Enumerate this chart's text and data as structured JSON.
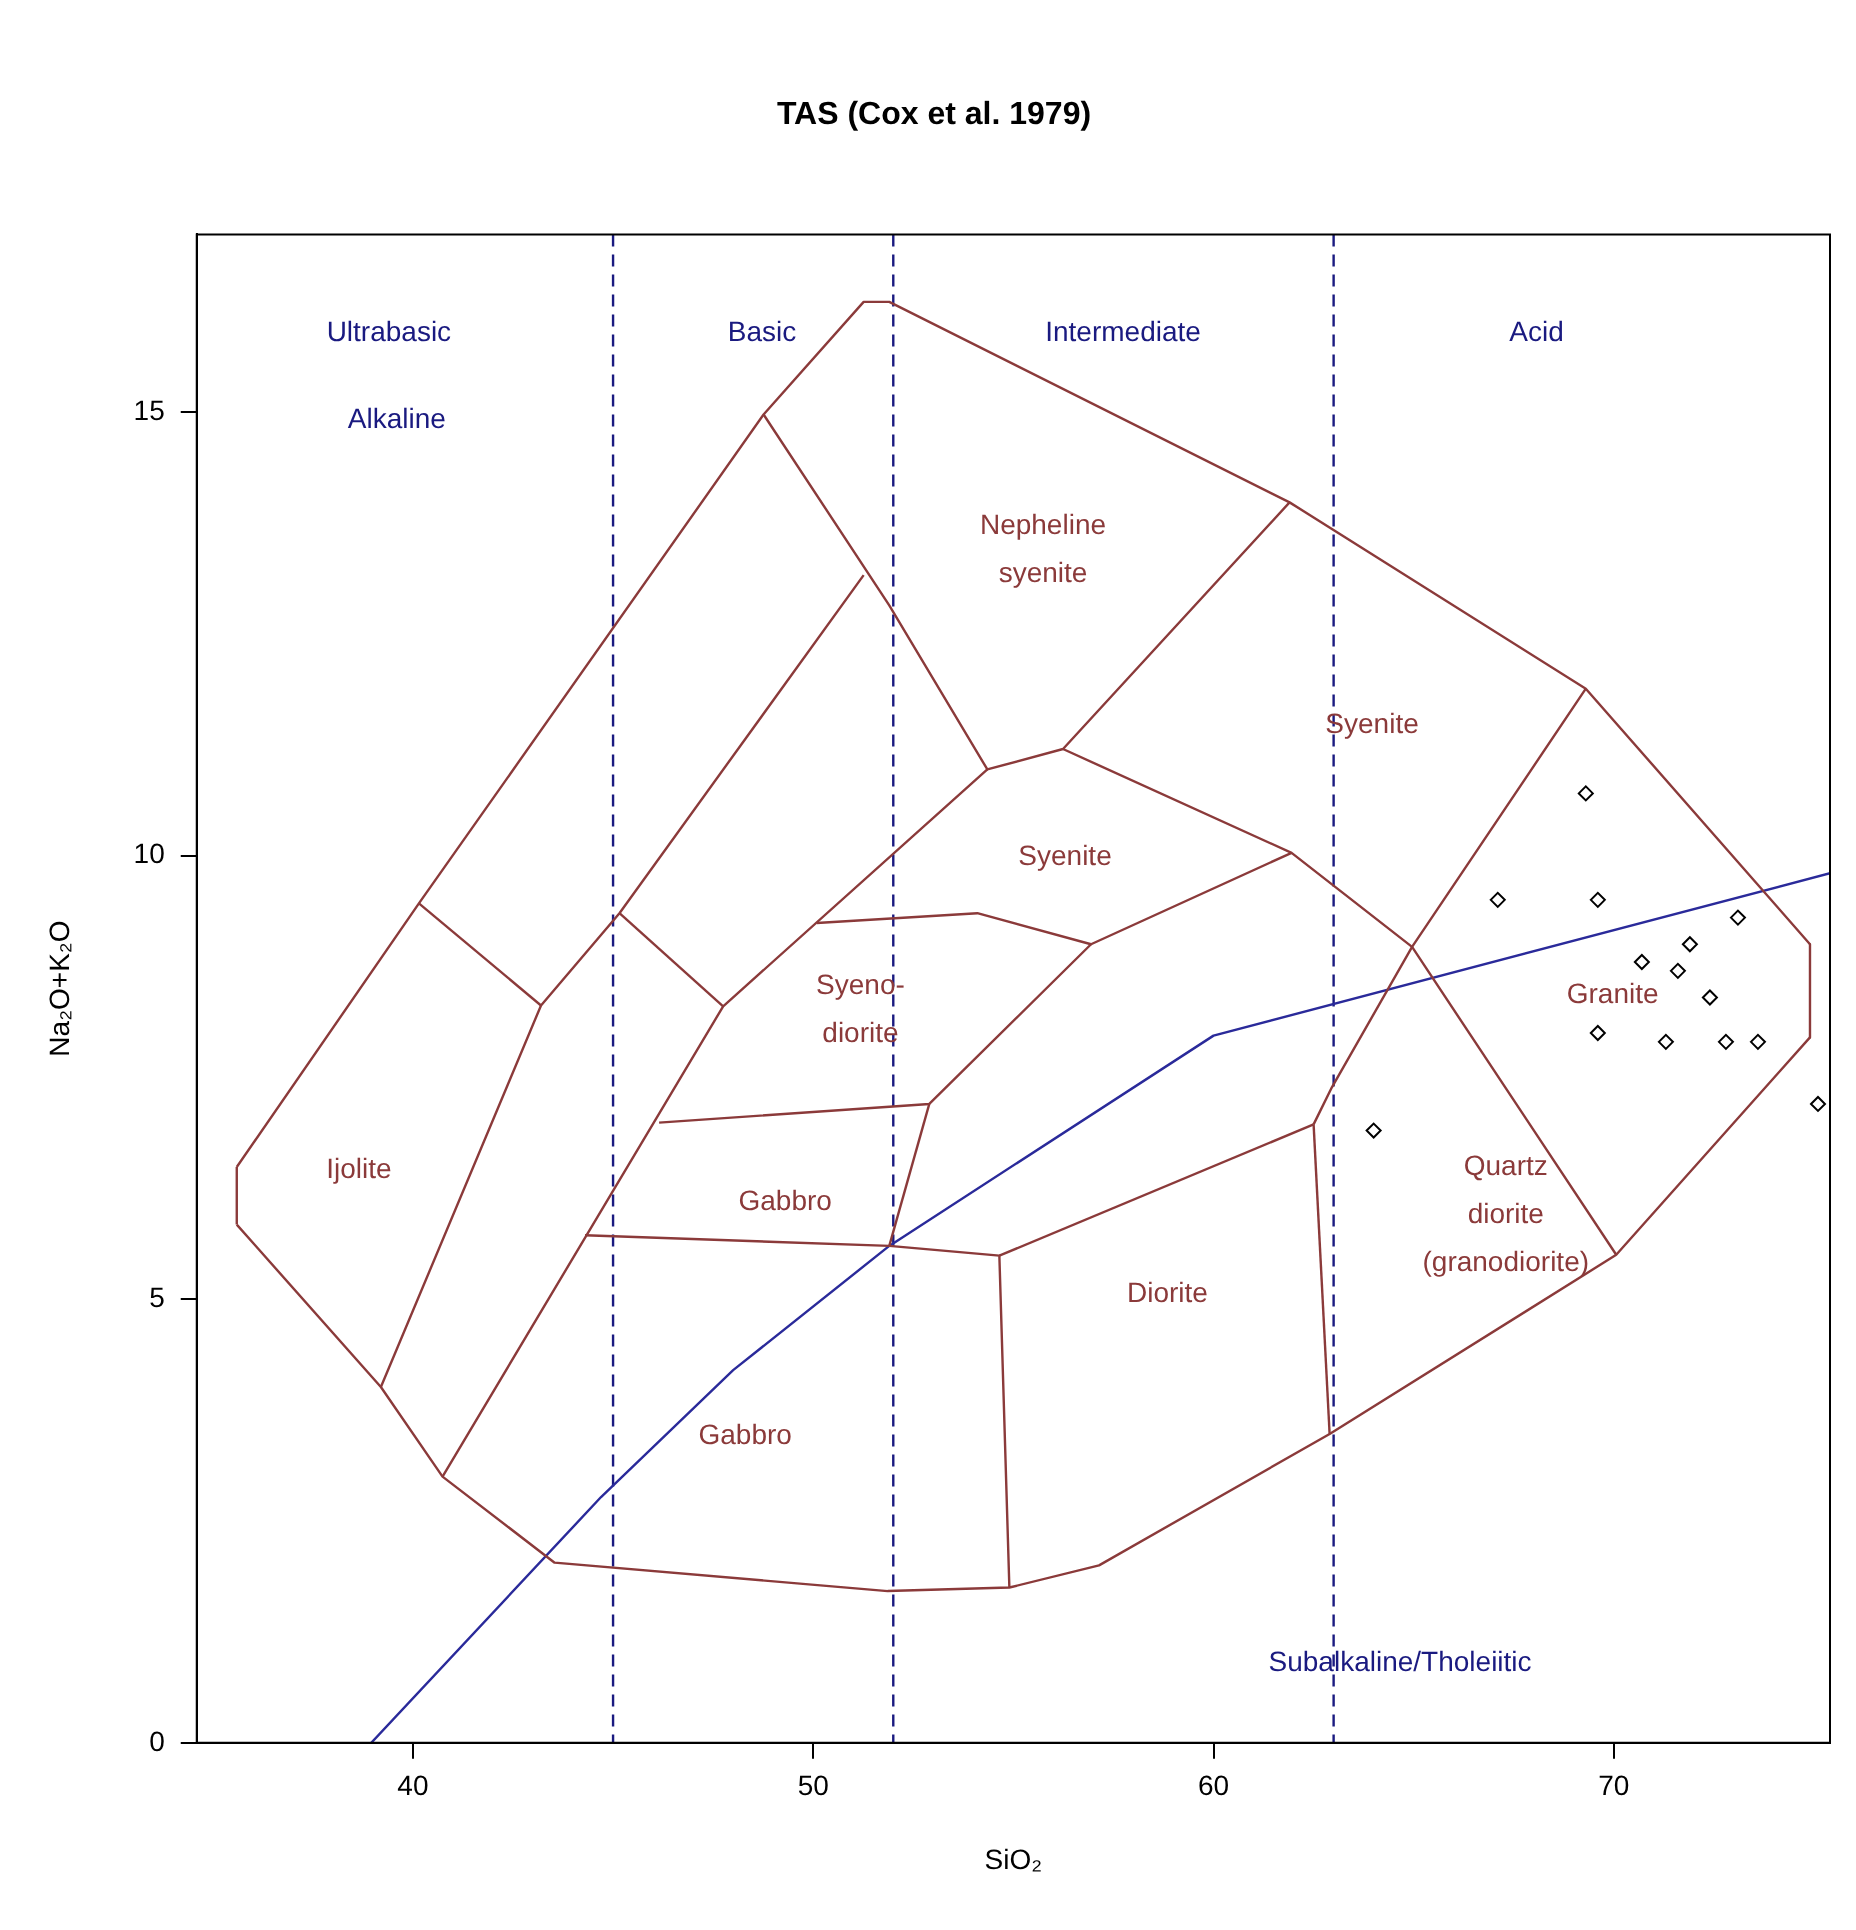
{
  "chart_data": {
    "type": "line",
    "title": "TAS (Cox et al. 1979)",
    "xlabel": "SiO₂",
    "ylabel": "Na₂O+K₂O",
    "xlim": [
      34.6,
      75.4
    ],
    "ylim": [
      0,
      17
    ],
    "xticks": [
      40,
      50,
      60,
      70
    ],
    "yticks": [
      0,
      5,
      10,
      15
    ],
    "grid": false,
    "legend": false,
    "series": [
      {
        "color": "#8b3a3a",
        "x": [
          35.6,
          40.15,
          48.76,
          51.26,
          51.9,
          61.9,
          69.3,
          74.9
        ],
        "values": [
          6.49,
          9.46,
          14.97,
          16.24,
          16.24,
          13.98,
          11.88,
          9.0
        ]
      },
      {
        "color": "#8b3a3a",
        "x": [
          74.9,
          74.9
        ],
        "values": [
          9.0,
          7.95
        ]
      },
      {
        "color": "#8b3a3a",
        "x": [
          35.6,
          39.2,
          40.74,
          43.54,
          51.86,
          54.9,
          57.14,
          62.9,
          70.06,
          74.9
        ],
        "values": [
          5.84,
          4.01,
          3.0,
          2.03,
          1.71,
          1.75,
          2.0,
          3.48,
          5.5,
          7.95
        ]
      },
      {
        "color": "#8b3a3a",
        "x": [
          35.6,
          35.6
        ],
        "values": [
          5.84,
          6.49
        ]
      },
      {
        "color": "#8b3a3a",
        "x": [
          40.15,
          43.2
        ],
        "values": [
          9.46,
          8.31
        ]
      },
      {
        "color": "#8b3a3a",
        "x": [
          39.2,
          43.2,
          45.16,
          51.26
        ],
        "values": [
          4.01,
          8.31,
          9.35,
          13.16
        ]
      },
      {
        "color": "#8b3a3a",
        "x": [
          45.16,
          47.75
        ],
        "values": [
          9.35,
          8.3
        ]
      },
      {
        "color": "#8b3a3a",
        "x": [
          40.74,
          47.75,
          54.35
        ],
        "values": [
          3.0,
          8.3,
          10.97
        ]
      },
      {
        "color": "#8b3a3a",
        "x": [
          48.76,
          51.9,
          54.35,
          56.24,
          61.9
        ],
        "values": [
          14.97,
          12.82,
          10.97,
          11.2,
          13.98
        ]
      },
      {
        "color": "#8b3a3a",
        "x": [
          56.24,
          61.95,
          64.96,
          70.06
        ],
        "values": [
          11.2,
          10.03,
          8.97,
          5.5
        ]
      },
      {
        "color": "#8b3a3a",
        "x": [
          50.09,
          54.1,
          56.94,
          61.95
        ],
        "values": [
          9.24,
          9.35,
          9.0,
          10.03
        ]
      },
      {
        "color": "#8b3a3a",
        "x": [
          62.5,
          62.96,
          64.96,
          69.3
        ],
        "values": [
          6.97,
          7.39,
          8.97,
          11.88
        ]
      },
      {
        "color": "#8b3a3a",
        "x": [
          62.5,
          62.9
        ],
        "values": [
          6.97,
          3.48
        ]
      },
      {
        "color": "#8b3a3a",
        "x": [
          46.15,
          52.9,
          56.94
        ],
        "values": [
          6.99,
          7.2,
          9.0
        ]
      },
      {
        "color": "#8b3a3a",
        "x": [
          51.9,
          52.9
        ],
        "values": [
          5.6,
          7.2
        ]
      },
      {
        "color": "#8b3a3a",
        "x": [
          44.3,
          51.9,
          54.65,
          54.9
        ],
        "values": [
          5.72,
          5.6,
          5.49,
          1.75
        ]
      },
      {
        "color": "#8b3a3a",
        "x": [
          54.65,
          62.5
        ],
        "values": [
          5.49,
          6.97
        ]
      },
      {
        "color": "#2a2a9a",
        "x": [
          38.96,
          44.7,
          48.0,
          51.9,
          60.0,
          75.4
        ],
        "values": [
          0,
          2.77,
          4.2,
          5.6,
          7.97,
          9.8
        ]
      },
      {
        "type": "scatter",
        "color": "#000000",
        "marker": "diamond",
        "x": [
          69.3,
          67.1,
          69.6,
          73.1,
          71.9,
          70.7,
          71.6,
          72.4,
          69.6,
          71.3,
          72.8,
          73.6,
          75.1,
          64.0
        ],
        "values": [
          10.7,
          9.5,
          9.5,
          9.3,
          9.0,
          8.8,
          8.7,
          8.4,
          8.0,
          7.9,
          7.9,
          7.9,
          7.2,
          6.9
        ]
      }
    ],
    "ref_lines": [
      {
        "axis": "x",
        "value": 45,
        "color": "#1a1a80",
        "line_style": "dashed"
      },
      {
        "axis": "x",
        "value": 52,
        "color": "#1a1a80",
        "line_style": "dashed"
      },
      {
        "axis": "x",
        "value": 63,
        "color": "#1a1a80",
        "line_style": "dashed"
      }
    ],
    "annotations": [
      "Ultrabasic",
      "Basic",
      "Intermediate",
      "Acid",
      "Alkaline",
      "Nepheline\nsyenite",
      "Syenite",
      "Syenite",
      "Syeno-\ndiorite",
      "Granite",
      "Ijolite",
      "Gabbro",
      "Quartz\ndiorite\n(granodiorite)",
      "Diorite",
      "Gabbro",
      "Subalkaline/Tholeiitic"
    ]
  }
}
